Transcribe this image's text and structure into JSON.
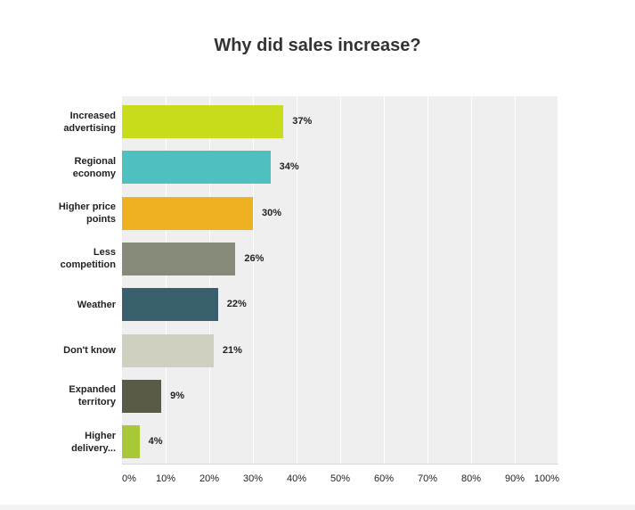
{
  "chart_data": {
    "type": "bar",
    "orientation": "horizontal",
    "title": "Why did sales increase?",
    "categories": [
      [
        "Increased",
        "advertising"
      ],
      [
        "Regional",
        "economy"
      ],
      [
        "Higher price",
        "points"
      ],
      [
        "Less",
        "competition"
      ],
      [
        "Weather"
      ],
      [
        "Don't know"
      ],
      [
        "Expanded",
        "territory"
      ],
      [
        "Higher",
        "delivery..."
      ]
    ],
    "values": [
      37,
      34,
      30,
      26,
      22,
      21,
      9,
      4
    ],
    "value_labels": [
      "37%",
      "34%",
      "30%",
      "26%",
      "22%",
      "21%",
      "9%",
      "4%"
    ],
    "colors": [
      "#c9dc1c",
      "#4fc0c0",
      "#f0b120",
      "#868a78",
      "#3a5f6c",
      "#cfd0bf",
      "#595b48",
      "#a8c838"
    ],
    "xlim": [
      0,
      100
    ],
    "xticks": [
      "0%",
      "10%",
      "20%",
      "30%",
      "40%",
      "50%",
      "60%",
      "70%",
      "80%",
      "90%",
      "100%"
    ],
    "xlabel": "",
    "ylabel": "",
    "grid": true
  }
}
